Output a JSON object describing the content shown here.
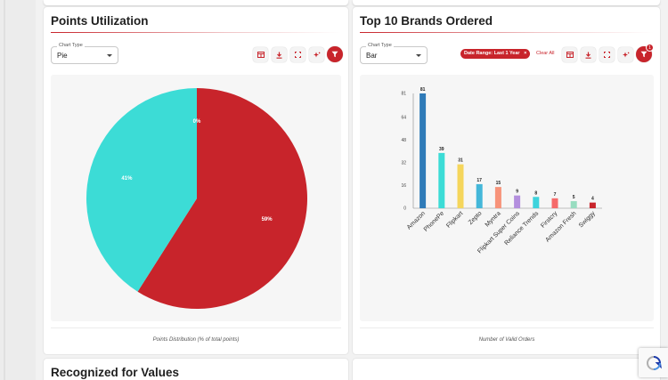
{
  "pie_card": {
    "title": "Points Utilization",
    "chart_type_label": "Chart Type",
    "chart_type_value": "Pie",
    "caption": "Points Distribution (% of total points)"
  },
  "bar_card": {
    "title": "Top 10 Brands Ordered",
    "chart_type_label": "Chart Type",
    "chart_type_value": "Bar",
    "date_chip": "Date Range: Last 1 Year",
    "clear_all": "Clear All",
    "filter_badge": "1",
    "caption": "Number of Valid Orders"
  },
  "third_card": {
    "title": "Recognized for Values"
  },
  "icons": {
    "table": "table-icon",
    "download": "download-icon",
    "fullscreen": "fullscreen-icon",
    "ai": "sparkle-icon",
    "filter": "filter-icon"
  },
  "colors": {
    "accent": "#c8242b"
  },
  "chart_data": [
    {
      "type": "pie",
      "slices": [
        {
          "label": "59%",
          "value": 59,
          "color": "#c8242b"
        },
        {
          "label": "41%",
          "value": 41,
          "color": "#3cdcd6"
        },
        {
          "label": "0%",
          "value": 0,
          "color": "#f2b8a0"
        }
      ]
    },
    {
      "type": "bar",
      "categories": [
        "Amazon",
        "PhonePe",
        "Flipkart",
        "Zepto",
        "Myntra",
        "Flipkart Super Coins",
        "Reliance Trends",
        "Firstcry",
        "Amazon Fresh",
        "Swiggy"
      ],
      "values": [
        81,
        39,
        31,
        17,
        15,
        9,
        8,
        7,
        5,
        4
      ],
      "colors": [
        "#2f7bb8",
        "#3cdcd6",
        "#f5d65c",
        "#44b7d9",
        "#f7937a",
        "#b48fde",
        "#3ed3dc",
        "#f56a6a",
        "#98dcc0",
        "#c8242b"
      ],
      "y_ticks": [
        "0",
        "16",
        "32",
        "48",
        "64",
        "81"
      ],
      "ylim": [
        0,
        81
      ],
      "grid": false
    }
  ]
}
